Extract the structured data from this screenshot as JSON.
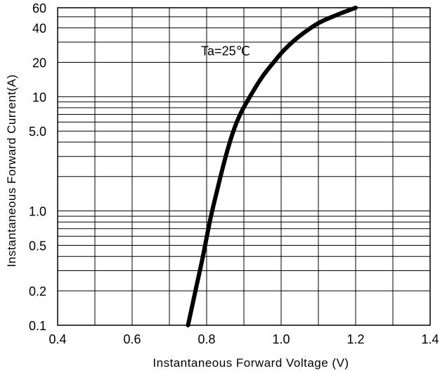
{
  "chart_data": {
    "type": "line",
    "title": "",
    "xlabel": "Instantaneous Forward Voltage (V)",
    "ylabel": "Instantaneous Forward Current(A)",
    "xlim": [
      0.4,
      1.4
    ],
    "ylim": [
      0.1,
      60
    ],
    "yscale": "log",
    "grid": true,
    "x_ticks": [
      0.4,
      0.6,
      0.8,
      1.0,
      1.2,
      1.4
    ],
    "x_tick_labels": [
      "0.4",
      "0.6",
      "0.8",
      "1.0",
      "1.2",
      "1.4"
    ],
    "y_ticks": [
      0.1,
      0.2,
      0.5,
      1.0,
      5.0,
      10,
      20,
      40,
      60
    ],
    "y_tick_labels": [
      "0.1",
      "0.2",
      "0.5",
      "1.0",
      "5.0",
      "10",
      "20",
      "40",
      "60"
    ],
    "y_minor_gridlines": [
      0.3,
      0.4,
      0.6,
      0.7,
      0.8,
      0.9,
      2,
      3,
      4,
      6,
      7,
      8,
      9,
      30,
      50
    ],
    "annotations": [
      {
        "text": "Ta=25℃",
        "x": 0.98,
        "y": 24
      }
    ],
    "series": [
      {
        "x": [
          0.75,
          0.77,
          0.79,
          0.81,
          0.83,
          0.85,
          0.87,
          0.89,
          0.92,
          0.95,
          0.98,
          1.01,
          1.05,
          1.1,
          1.15,
          1.2
        ],
        "y": [
          0.1,
          0.2,
          0.4,
          0.85,
          1.6,
          2.9,
          4.8,
          7.0,
          10.5,
          15,
          20,
          26,
          34,
          44,
          52,
          60
        ]
      }
    ]
  },
  "colors": {
    "grid": "#000000",
    "curve": "#000000",
    "background": "#ffffff"
  }
}
